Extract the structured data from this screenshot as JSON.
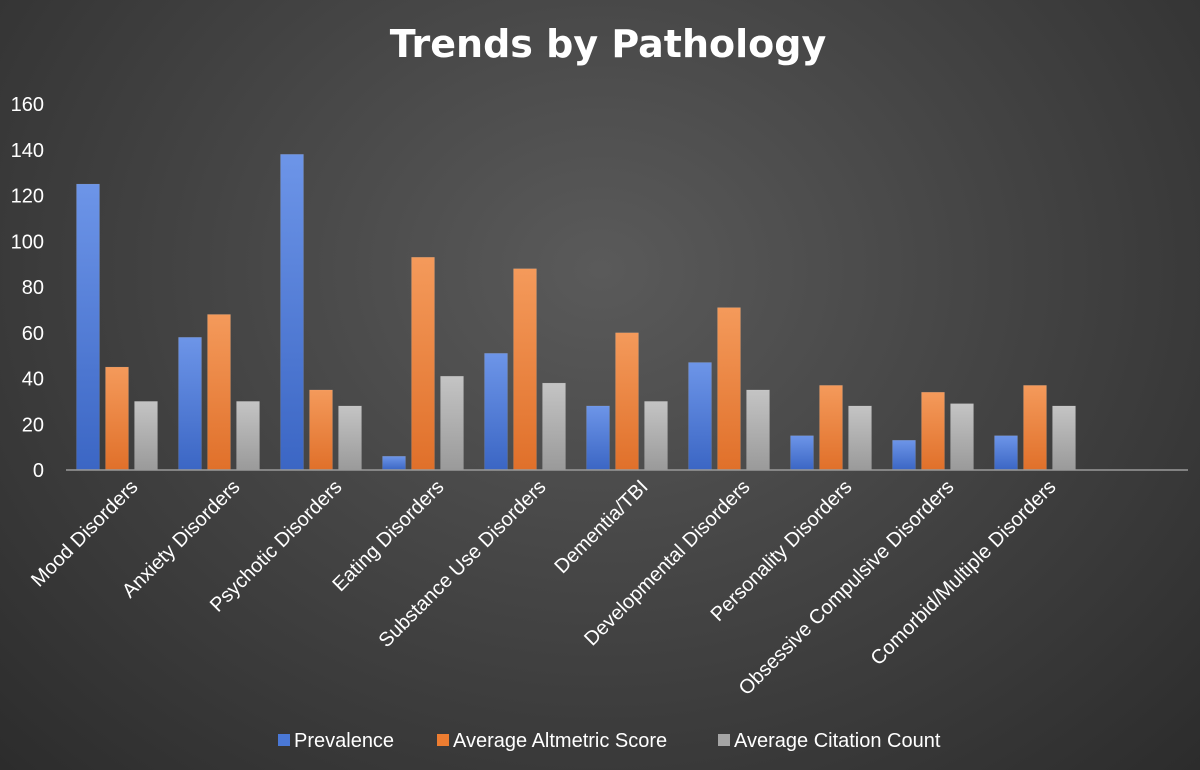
{
  "chart_data": {
    "type": "bar",
    "title": "Trends by Pathology",
    "xlabel": "",
    "ylabel": "",
    "ylim": [
      0,
      160
    ],
    "yticks": [
      0,
      20,
      40,
      60,
      80,
      100,
      120,
      140,
      160
    ],
    "grid": false,
    "legend_position": "bottom",
    "categories": [
      "Mood Disorders",
      "Anxiety Disorders",
      "Psychotic Disorders",
      "Eating Disorders",
      "Substance Use Disorders",
      "Dementia/TBI",
      "Developmental Disorders",
      "Personality Disorders",
      "Obsessive Compulsive Disorders",
      "Comorbid/Multiple Disorders",
      ""
    ],
    "series": [
      {
        "name": "Prevalence",
        "color": "#4a78d6",
        "values": [
          125,
          58,
          138,
          6,
          51,
          28,
          47,
          15,
          13,
          15,
          null
        ]
      },
      {
        "name": "Average Altmetric Score",
        "color": "#ed7d31",
        "values": [
          45,
          68,
          35,
          93,
          88,
          60,
          71,
          37,
          34,
          37,
          null
        ]
      },
      {
        "name": "Average Citation Count",
        "color": "#a5a5a5",
        "values": [
          30,
          30,
          28,
          41,
          38,
          30,
          35,
          28,
          29,
          28,
          null
        ]
      }
    ]
  }
}
